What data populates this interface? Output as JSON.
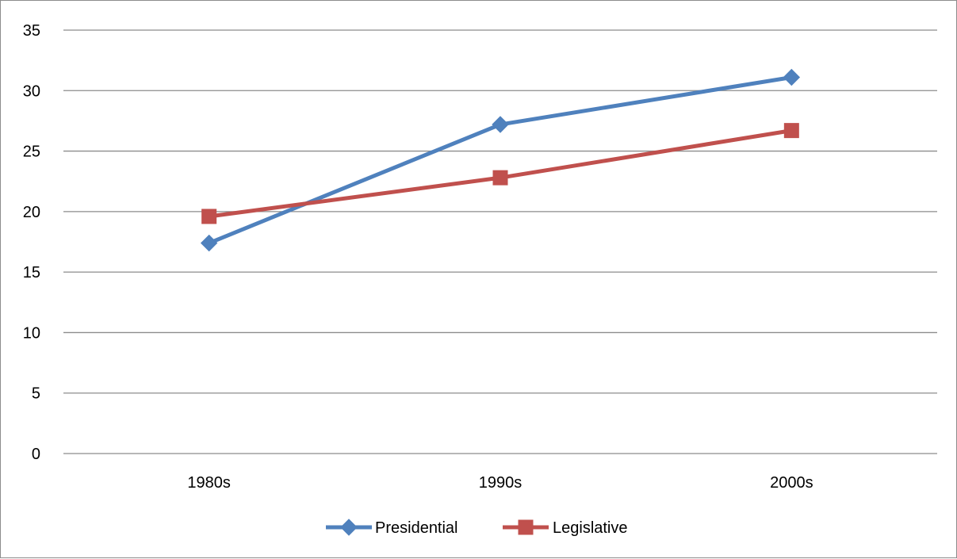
{
  "chart_data": {
    "type": "line",
    "categories": [
      "1980s",
      "1990s",
      "2000s"
    ],
    "series": [
      {
        "name": "Presidential",
        "values": [
          17.4,
          27.2,
          31.1
        ],
        "color": "#4f81bd",
        "marker": "diamond"
      },
      {
        "name": "Legislative",
        "values": [
          19.6,
          22.8,
          26.7
        ],
        "color": "#c0504d",
        "marker": "square"
      }
    ],
    "ylim": [
      0,
      35
    ],
    "yticks": [
      0,
      5,
      10,
      15,
      20,
      25,
      30,
      35
    ],
    "grid": true,
    "legend": "bottom",
    "title": "",
    "xlabel": "",
    "ylabel": ""
  }
}
